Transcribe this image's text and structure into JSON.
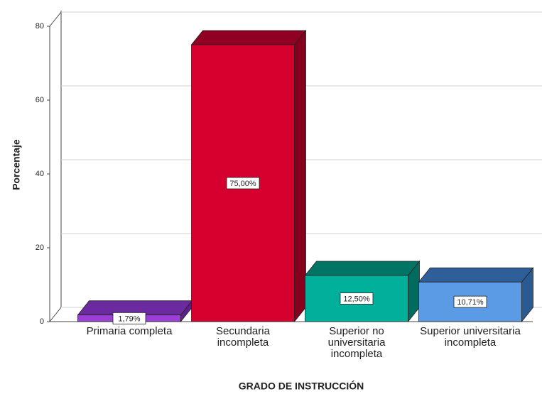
{
  "chart_data": {
    "type": "bar3d",
    "y_axis_label": "Porcentaje",
    "x_axis_label": "GRADO DE INSTRUCCIÓN",
    "categories": [
      "Primaria completa",
      "Secundaria incompleta",
      "Superior no universitaria incompleta",
      "Superior universitaria incompleta"
    ],
    "values": [
      1.79,
      75,
      12.5,
      10.71
    ],
    "value_labels": [
      "1,79%",
      "75,00%",
      "12,50%",
      "10,71%"
    ],
    "colors": [
      "#9b3fd6",
      "#d6002f",
      "#00b09b",
      "#5b9be6"
    ],
    "side_colors": [
      "#5e1f8a",
      "#86001d",
      "#006b5e",
      "#2a5a91"
    ],
    "top_colors": [
      "#6c2aa0",
      "#8f0022",
      "#007565",
      "#2e5f99"
    ],
    "ylim": [
      0,
      80
    ],
    "yticks": [
      0,
      20,
      40,
      60,
      80
    ],
    "grid": true
  }
}
